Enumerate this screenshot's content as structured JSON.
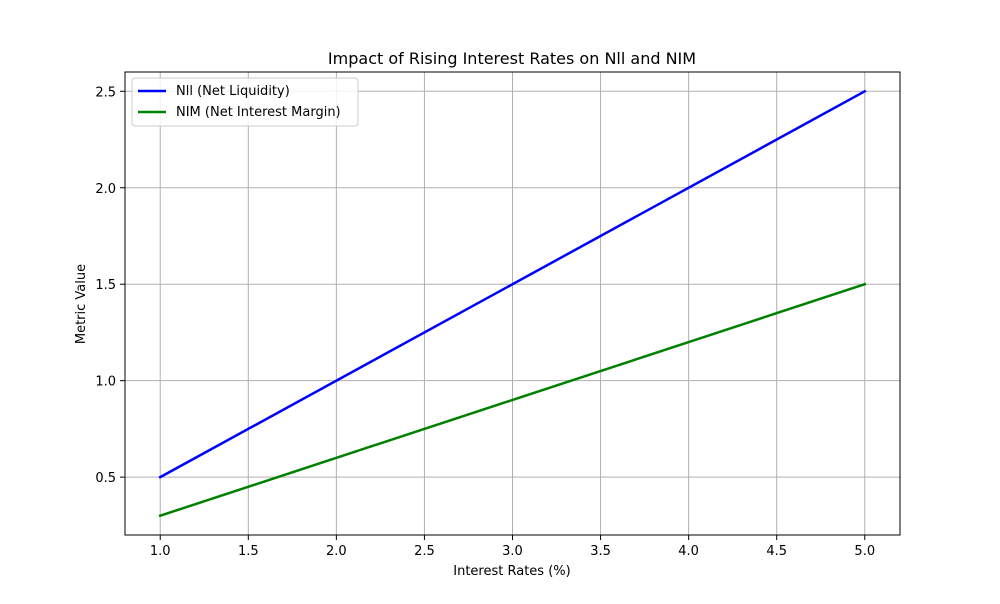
{
  "chart_data": {
    "type": "line",
    "title": "Impact of Rising Interest Rates on Nll and NIM",
    "xlabel": "Interest Rates (%)",
    "ylabel": "Metric Value",
    "x": [
      1.0,
      5.0
    ],
    "xlim": [
      0.8,
      5.2
    ],
    "ylim": [
      0.2,
      2.6
    ],
    "xticks": [
      "1.0",
      "1.5",
      "2.0",
      "2.5",
      "3.0",
      "3.5",
      "4.0",
      "4.5",
      "5.0"
    ],
    "yticks": [
      "0.5",
      "1.0",
      "1.5",
      "2.0",
      "2.5"
    ],
    "grid": true,
    "legend_position": "top-left",
    "series": [
      {
        "name": "Nll (Net Liquidity)",
        "color": "#0000ff",
        "values": [
          0.5,
          2.5
        ]
      },
      {
        "name": "NIM (Net Interest Margin)",
        "color": "#008000",
        "values": [
          0.3,
          1.5
        ]
      }
    ]
  }
}
